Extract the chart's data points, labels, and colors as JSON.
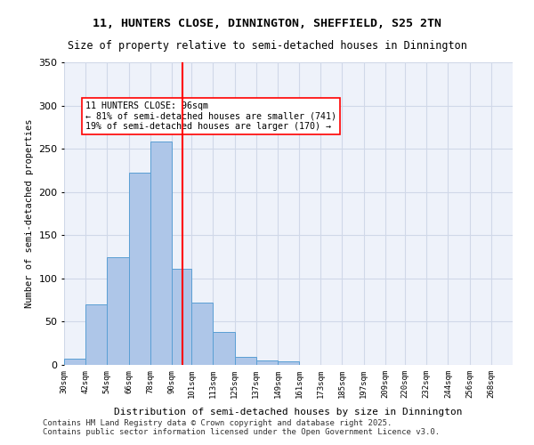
{
  "title1": "11, HUNTERS CLOSE, DINNINGTON, SHEFFIELD, S25 2TN",
  "title2": "Size of property relative to semi-detached houses in Dinnington",
  "xlabel": "Distribution of semi-detached houses by size in Dinnington",
  "ylabel": "Number of semi-detached properties",
  "footer1": "Contains HM Land Registry data © Crown copyright and database right 2025.",
  "footer2": "Contains public sector information licensed under the Open Government Licence v3.0.",
  "bin_labels": [
    "30sqm",
    "42sqm",
    "54sqm",
    "66sqm",
    "78sqm",
    "90sqm",
    "101sqm",
    "113sqm",
    "125sqm",
    "137sqm",
    "149sqm",
    "161sqm",
    "173sqm",
    "185sqm",
    "197sqm",
    "209sqm",
    "220sqm",
    "232sqm",
    "244sqm",
    "256sqm",
    "268sqm"
  ],
  "bin_edges": [
    30,
    42,
    54,
    66,
    78,
    90,
    101,
    113,
    125,
    137,
    149,
    161,
    173,
    185,
    197,
    209,
    220,
    232,
    244,
    256,
    268,
    280
  ],
  "bar_values": [
    7,
    70,
    125,
    222,
    258,
    111,
    72,
    38,
    9,
    5,
    4,
    0,
    0,
    0,
    0,
    0,
    0,
    0,
    0,
    0,
    0
  ],
  "bar_color": "#aec6e8",
  "bar_edge_color": "#5a9fd4",
  "grid_color": "#d0d8e8",
  "bg_color": "#eef2fa",
  "vline_x": 96,
  "vline_color": "red",
  "annotation_text": "11 HUNTERS CLOSE: 96sqm\n← 81% of semi-detached houses are smaller (741)\n19% of semi-detached houses are larger (170) →",
  "annotation_box_color": "white",
  "annotation_box_edge": "red",
  "ylim": [
    0,
    350
  ],
  "yticks": [
    0,
    50,
    100,
    150,
    200,
    250,
    300,
    350
  ]
}
